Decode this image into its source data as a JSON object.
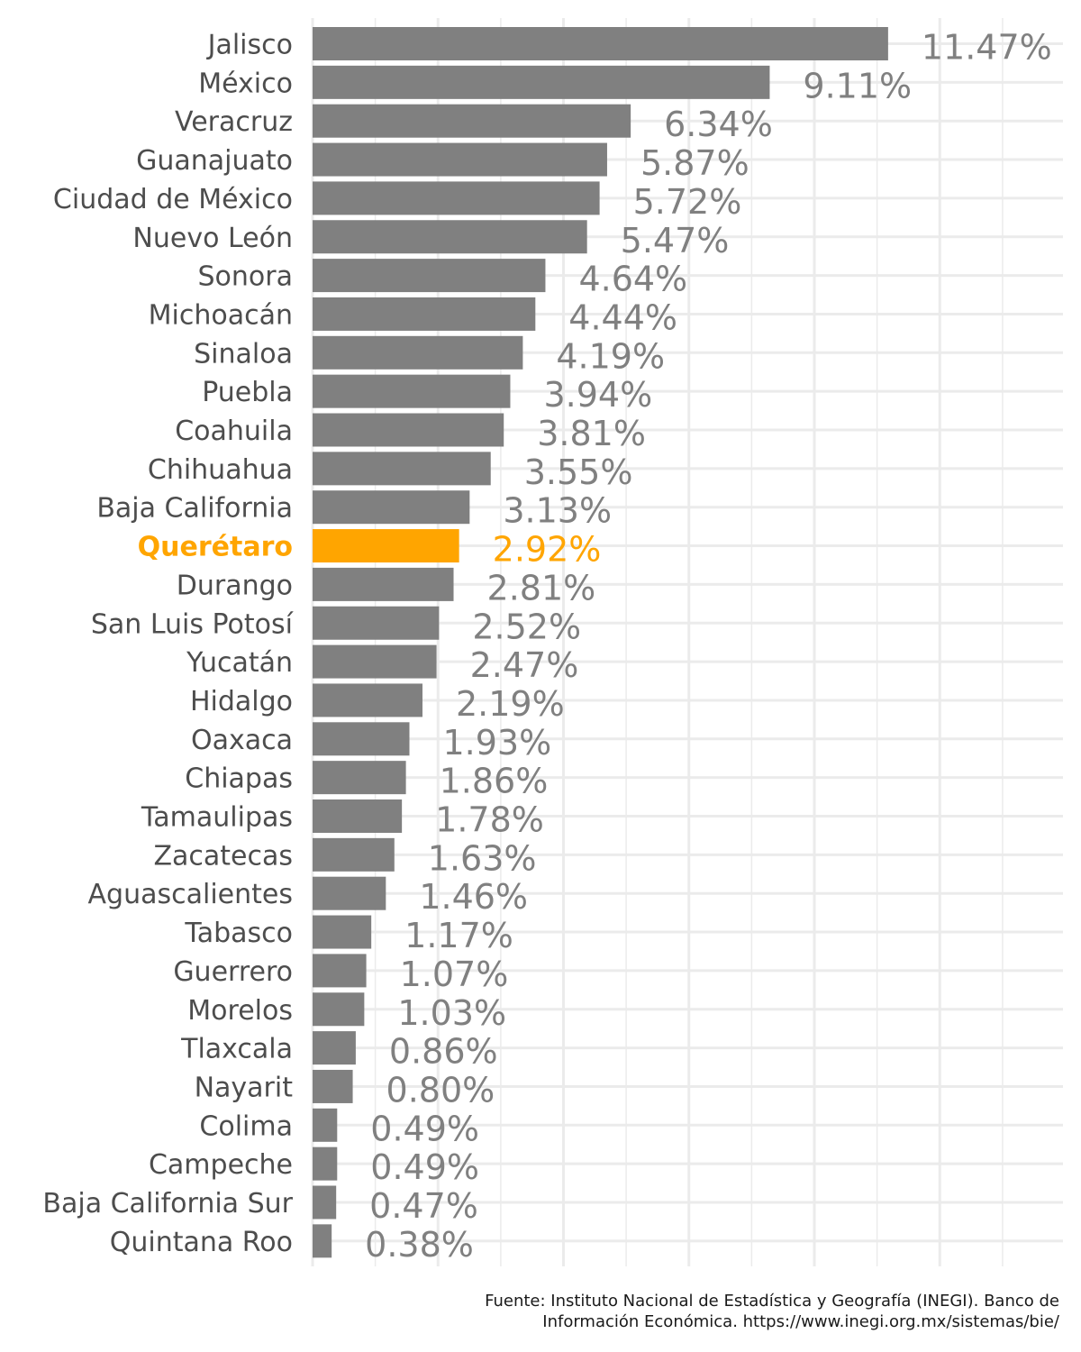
{
  "chart_data": {
    "type": "bar",
    "orientation": "horizontal",
    "categories": [
      "Jalisco",
      "México",
      "Veracruz",
      "Guanajuato",
      "Ciudad de México",
      "Nuevo León",
      "Sonora",
      "Michoacán",
      "Sinaloa",
      "Puebla",
      "Coahuila",
      "Chihuahua",
      "Baja California",
      "Querétaro",
      "Durango",
      "San Luis Potosí",
      "Yucatán",
      "Hidalgo",
      "Oaxaca",
      "Chiapas",
      "Tamaulipas",
      "Zacatecas",
      "Aguascalientes",
      "Tabasco",
      "Guerrero",
      "Morelos",
      "Tlaxcala",
      "Nayarit",
      "Colima",
      "Campeche",
      "Baja California Sur",
      "Quintana Roo"
    ],
    "values": [
      11.47,
      9.11,
      6.34,
      5.87,
      5.72,
      5.47,
      4.64,
      4.44,
      4.19,
      3.94,
      3.81,
      3.55,
      3.13,
      2.92,
      2.81,
      2.52,
      2.47,
      2.19,
      1.93,
      1.86,
      1.78,
      1.63,
      1.46,
      1.17,
      1.07,
      1.03,
      0.86,
      0.8,
      0.49,
      0.49,
      0.47,
      0.38
    ],
    "value_labels": [
      "11.47%",
      "9.11%",
      "6.34%",
      "5.87%",
      "5.72%",
      "5.47%",
      "4.64%",
      "4.44%",
      "4.19%",
      "3.94%",
      "3.81%",
      "3.55%",
      "3.13%",
      "2.92%",
      "2.81%",
      "2.52%",
      "2.47%",
      "2.19%",
      "1.93%",
      "1.86%",
      "1.78%",
      "1.63%",
      "1.46%",
      "1.17%",
      "1.07%",
      "1.03%",
      "0.86%",
      "0.80%",
      "0.49%",
      "0.49%",
      "0.47%",
      "0.38%"
    ],
    "highlight": "Querétaro",
    "xlim": [
      0,
      15
    ],
    "title": "",
    "xlabel": "",
    "ylabel": "",
    "grid": true,
    "legend": "none",
    "colors": {
      "bar": "#808080",
      "highlight": "#FFA500",
      "grid": "#ebebeb"
    }
  },
  "caption": {
    "line1": "Fuente: Instituto Nacional de Estadística y Geografía (INEGI). Banco de",
    "line2": "Información Económica. https://www.inegi.org.mx/sistemas/bie/"
  }
}
